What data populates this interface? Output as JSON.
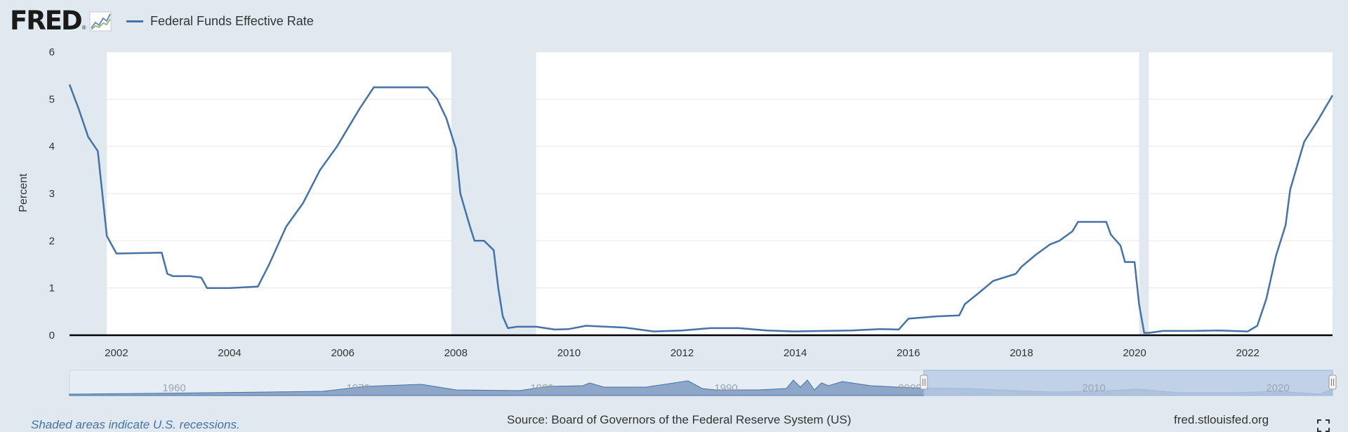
{
  "header": {
    "logo_text": "FRED",
    "logo_reg": "®",
    "logo_icon": "chart-line-icon",
    "legend_label": "Federal Funds Effective Rate",
    "legend_color": "#4572a7"
  },
  "footer": {
    "note": "Shaded areas indicate U.S. recessions.",
    "source": "Source: Board of Governors of the Federal Reserve System (US)",
    "url": "fred.stlouisfed.org",
    "fullscreen_icon": "fullscreen-icon"
  },
  "colors": {
    "line": "#4572a7",
    "recession": "#e1e9f0",
    "plot_bg": "#ffffff",
    "page_bg": "#e1e9f0",
    "navigator_fill": "#8ea7c8",
    "navigator_selection": "#b8c9e3"
  },
  "chart_data": {
    "type": "line",
    "title": "",
    "xlabel": "",
    "ylabel": "Percent",
    "xlim": [
      2001.17,
      2023.5
    ],
    "ylim": [
      0,
      6
    ],
    "yticks": [
      0,
      1,
      2,
      3,
      4,
      5,
      6
    ],
    "xticks": [
      2002,
      2004,
      2006,
      2008,
      2010,
      2012,
      2014,
      2016,
      2018,
      2020,
      2022
    ],
    "grid": true,
    "legend": "top-left",
    "recessions": [
      [
        2001.17,
        2001.83
      ],
      [
        2007.92,
        2009.42
      ],
      [
        2020.08,
        2020.25
      ]
    ],
    "series": [
      {
        "name": "Federal Funds Effective Rate",
        "x": [
          2001.17,
          2001.33,
          2001.5,
          2001.67,
          2001.83,
          2002.0,
          2002.5,
          2002.8,
          2002.9,
          2003.0,
          2003.3,
          2003.5,
          2003.6,
          2004.0,
          2004.5,
          2004.7,
          2005.0,
          2005.3,
          2005.6,
          2005.9,
          2006.1,
          2006.3,
          2006.55,
          2007.0,
          2007.5,
          2007.67,
          2007.83,
          2008.0,
          2008.08,
          2008.25,
          2008.33,
          2008.5,
          2008.67,
          2008.75,
          2008.83,
          2008.92,
          2009.08,
          2009.42,
          2009.75,
          2010.0,
          2010.3,
          2010.5,
          2011.0,
          2011.5,
          2012.0,
          2012.5,
          2013.0,
          2013.5,
          2014.0,
          2014.5,
          2015.0,
          2015.5,
          2015.83,
          2016.0,
          2016.5,
          2016.9,
          2017.0,
          2017.25,
          2017.5,
          2017.9,
          2018.0,
          2018.25,
          2018.5,
          2018.67,
          2018.9,
          2019.0,
          2019.25,
          2019.5,
          2019.58,
          2019.75,
          2019.83,
          2020.0,
          2020.08,
          2020.17,
          2020.25,
          2020.5,
          2021.0,
          2021.5,
          2022.0,
          2022.17,
          2022.33,
          2022.5,
          2022.67,
          2022.75,
          2022.92,
          2023.0,
          2023.25,
          2023.5
        ],
        "y": [
          5.31,
          4.8,
          4.2,
          3.9,
          2.1,
          1.73,
          1.74,
          1.75,
          1.3,
          1.25,
          1.25,
          1.22,
          1.0,
          1.0,
          1.03,
          1.5,
          2.3,
          2.8,
          3.5,
          4.0,
          4.4,
          4.8,
          5.25,
          5.25,
          5.25,
          5.0,
          4.6,
          3.95,
          3.0,
          2.3,
          2.0,
          2.0,
          1.8,
          1.0,
          0.4,
          0.15,
          0.18,
          0.18,
          0.12,
          0.13,
          0.2,
          0.19,
          0.16,
          0.08,
          0.1,
          0.15,
          0.15,
          0.1,
          0.08,
          0.09,
          0.1,
          0.13,
          0.12,
          0.35,
          0.4,
          0.42,
          0.66,
          0.9,
          1.15,
          1.3,
          1.45,
          1.7,
          1.92,
          2.0,
          2.2,
          2.4,
          2.4,
          2.4,
          2.13,
          1.9,
          1.55,
          1.55,
          0.65,
          0.05,
          0.05,
          0.09,
          0.09,
          0.1,
          0.08,
          0.2,
          0.77,
          1.68,
          2.33,
          3.08,
          3.78,
          4.1,
          4.57,
          5.08
        ]
      }
    ],
    "navigator": {
      "ticks": [
        "1960",
        "1970",
        "1980",
        "1990",
        "2000",
        "2010",
        "2020"
      ]
    }
  }
}
